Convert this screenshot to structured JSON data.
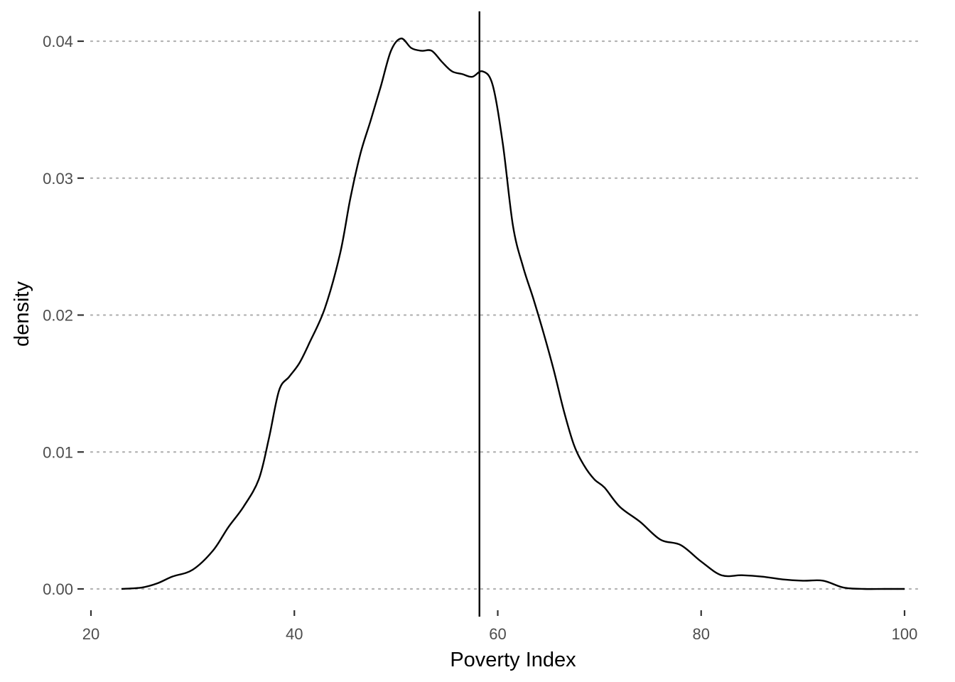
{
  "chart_data": {
    "type": "line",
    "title": "",
    "xlabel": "Poverty Index",
    "ylabel": "density",
    "xlim": [
      20,
      100
    ],
    "ylim": [
      0,
      0.04
    ],
    "x_ticks": [
      20,
      40,
      60,
      80,
      100
    ],
    "x_tick_labels": [
      "20",
      "40",
      "60",
      "80",
      "100"
    ],
    "y_ticks": [
      0,
      0.01,
      0.02,
      0.03,
      0.04
    ],
    "y_tick_labels": [
      "0.00",
      "0.01",
      "0.02",
      "0.03",
      "0.04"
    ],
    "grid": "horizontal dotted",
    "legend": "none",
    "vline": {
      "x": 58.2
    },
    "series": [
      {
        "color": "#000000",
        "x": [
          23,
          25,
          26.5,
          28,
          30,
          32,
          33.5,
          35,
          36.5,
          37.5,
          38.5,
          39.5,
          40.5,
          41.5,
          43,
          44.5,
          45.5,
          46.5,
          47.5,
          48.5,
          49.5,
          50.5,
          51.5,
          52.5,
          53.5,
          54.5,
          55.5,
          56.5,
          57.5,
          58.5,
          59.5,
          60.5,
          61.5,
          62.5,
          63.5,
          64.5,
          65.5,
          66.5,
          67.5,
          68.5,
          69.5,
          70.5,
          72,
          74,
          76,
          78,
          80,
          82,
          84,
          86,
          88,
          90,
          92,
          94,
          96,
          98,
          100
        ],
        "y": [
          0.0,
          0.0001,
          0.0004,
          0.0009,
          0.0014,
          0.0028,
          0.0045,
          0.006,
          0.008,
          0.011,
          0.0145,
          0.0155,
          0.0165,
          0.018,
          0.0205,
          0.0245,
          0.0285,
          0.0318,
          0.0342,
          0.0367,
          0.0393,
          0.0402,
          0.0395,
          0.0393,
          0.0393,
          0.0385,
          0.0378,
          0.0376,
          0.0374,
          0.0378,
          0.0368,
          0.0325,
          0.0265,
          0.0235,
          0.0212,
          0.0187,
          0.016,
          0.013,
          0.0105,
          0.009,
          0.008,
          0.0074,
          0.006,
          0.0049,
          0.0036,
          0.0032,
          0.002,
          0.001,
          0.001,
          0.0009,
          0.0007,
          0.0006,
          0.0006,
          0.0001,
          0.0,
          0.0,
          0.0
        ]
      }
    ]
  }
}
